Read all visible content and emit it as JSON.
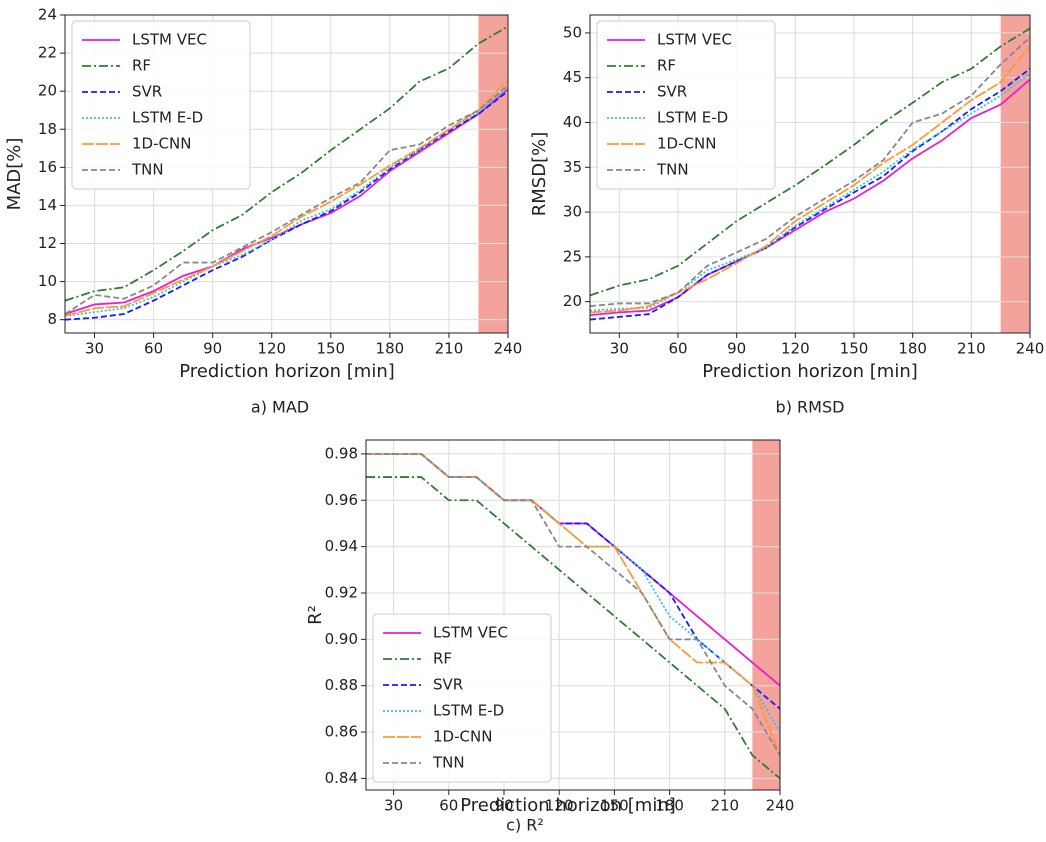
{
  "chart_data": [
    {
      "type": "line",
      "caption": "a) MAD",
      "xlabel": "Prediction horizon [min]",
      "ylabel": "MAD[%]",
      "x": [
        15,
        30,
        45,
        60,
        75,
        90,
        105,
        120,
        135,
        150,
        165,
        180,
        195,
        210,
        225,
        240
      ],
      "xlim": [
        15,
        240
      ],
      "xticks": [
        30,
        60,
        90,
        120,
        150,
        180,
        210,
        240
      ],
      "ylim": [
        7.3,
        24
      ],
      "yticks": [
        8,
        10,
        12,
        14,
        16,
        18,
        20,
        22,
        24
      ],
      "grid": true,
      "legend": "upper left",
      "shaded_span": [
        225,
        240
      ],
      "shade_color": "#f4a29c",
      "series": [
        {
          "name": "LSTM VEC",
          "color": "#e81ed2",
          "style": "solid",
          "values": [
            8.3,
            8.8,
            8.9,
            9.5,
            10.3,
            10.8,
            11.7,
            12.3,
            13.0,
            13.6,
            14.5,
            15.8,
            16.8,
            17.8,
            18.8,
            20.1
          ]
        },
        {
          "name": "RF",
          "color": "#2e7d32",
          "style": "dashdot",
          "values": [
            9.0,
            9.5,
            9.7,
            10.6,
            11.6,
            12.7,
            13.5,
            14.7,
            15.7,
            16.9,
            18.0,
            19.1,
            20.5,
            21.2,
            22.5,
            23.4
          ]
        },
        {
          "name": "SVR",
          "color": "#1a1aff",
          "style": "dashed",
          "values": [
            8.0,
            8.1,
            8.3,
            9.0,
            9.8,
            10.6,
            11.3,
            12.2,
            13.0,
            13.7,
            14.7,
            15.9,
            16.9,
            17.9,
            18.8,
            20.0
          ]
        },
        {
          "name": "LSTM E-D",
          "color": "#35c4d6",
          "style": "dotted",
          "values": [
            8.2,
            8.4,
            8.6,
            9.2,
            10.0,
            10.8,
            11.4,
            12.2,
            13.2,
            13.8,
            14.8,
            16.0,
            16.9,
            18.0,
            18.9,
            20.2
          ]
        },
        {
          "name": "1D-CNN",
          "color": "#ff9933",
          "style": "longdash",
          "values": [
            8.2,
            8.6,
            8.7,
            9.4,
            10.1,
            10.8,
            11.6,
            12.4,
            13.4,
            14.2,
            15.1,
            16.1,
            17.0,
            18.0,
            19.0,
            20.6
          ]
        },
        {
          "name": "TNN",
          "color": "#888888",
          "style": "dashed",
          "values": [
            8.3,
            9.3,
            9.1,
            9.8,
            11.0,
            11.0,
            11.8,
            12.6,
            13.5,
            14.4,
            15.2,
            16.9,
            17.2,
            18.2,
            19.0,
            20.3
          ]
        }
      ]
    },
    {
      "type": "line",
      "caption": "b) RMSD",
      "xlabel": "Prediction horizon [min]",
      "ylabel": "RMSD[%]",
      "x": [
        15,
        30,
        45,
        60,
        75,
        90,
        105,
        120,
        135,
        150,
        165,
        180,
        195,
        210,
        225,
        240
      ],
      "xlim": [
        15,
        240
      ],
      "xticks": [
        30,
        60,
        90,
        120,
        150,
        180,
        210,
        240
      ],
      "ylim": [
        16.5,
        52
      ],
      "yticks": [
        20,
        25,
        30,
        35,
        40,
        45,
        50
      ],
      "grid": true,
      "legend": "upper left",
      "shaded_span": [
        225,
        240
      ],
      "shade_color": "#f4a29c",
      "series": [
        {
          "name": "LSTM VEC",
          "color": "#e81ed2",
          "style": "solid",
          "values": [
            18.5,
            18.8,
            19.0,
            20.5,
            23.0,
            24.5,
            26.0,
            28.0,
            30.0,
            31.5,
            33.5,
            36.0,
            38.0,
            40.5,
            42.0,
            44.8
          ]
        },
        {
          "name": "RF",
          "color": "#2e7d32",
          "style": "dashdot",
          "values": [
            20.7,
            21.8,
            22.5,
            24.0,
            26.5,
            29.0,
            31.0,
            33.0,
            35.2,
            37.5,
            40.0,
            42.2,
            44.5,
            46.0,
            48.5,
            50.5
          ]
        },
        {
          "name": "SVR",
          "color": "#1a1aff",
          "style": "dashed",
          "values": [
            18.0,
            18.3,
            18.6,
            20.5,
            23.0,
            24.5,
            26.0,
            28.3,
            30.3,
            32.2,
            34.0,
            36.8,
            39.0,
            41.5,
            43.5,
            46.0
          ]
        },
        {
          "name": "LSTM E-D",
          "color": "#35c4d6",
          "style": "dotted",
          "values": [
            19.0,
            19.2,
            19.3,
            21.0,
            23.5,
            24.7,
            26.0,
            28.5,
            30.5,
            32.5,
            34.5,
            37.0,
            39.0,
            41.0,
            43.0,
            45.5
          ]
        },
        {
          "name": "1D-CNN",
          "color": "#ff9933",
          "style": "longdash",
          "values": [
            18.8,
            19.0,
            19.5,
            21.0,
            22.5,
            24.3,
            26.2,
            29.0,
            31.0,
            33.0,
            35.5,
            37.5,
            40.0,
            42.5,
            44.5,
            48.5
          ]
        },
        {
          "name": "TNN",
          "color": "#888888",
          "style": "dashed",
          "values": [
            19.5,
            19.8,
            19.8,
            21.0,
            24.0,
            25.5,
            27.0,
            29.5,
            31.5,
            33.5,
            35.8,
            40.0,
            41.0,
            43.0,
            46.5,
            49.5
          ]
        }
      ]
    },
    {
      "type": "line",
      "caption": "c) R²",
      "xlabel": "Prediction horizon [min]",
      "ylabel": "R²",
      "x": [
        15,
        30,
        45,
        60,
        75,
        90,
        105,
        120,
        135,
        150,
        165,
        180,
        195,
        210,
        225,
        240
      ],
      "xlim": [
        15,
        240
      ],
      "xticks": [
        30,
        60,
        90,
        120,
        150,
        180,
        210,
        240
      ],
      "ylim": [
        0.835,
        0.986
      ],
      "yticks": [
        0.84,
        0.86,
        0.88,
        {
          "value": 0.9,
          "label": "0.90"
        },
        0.92,
        0.94,
        0.96,
        0.98
      ],
      "grid": true,
      "legend": "lower left",
      "shaded_span": [
        225,
        240
      ],
      "shade_color": "#f4a29c",
      "series": [
        {
          "name": "LSTM VEC",
          "color": "#e81ed2",
          "style": "solid",
          "values": [
            0.98,
            0.98,
            0.98,
            0.97,
            0.97,
            0.96,
            0.96,
            0.95,
            0.95,
            0.94,
            0.93,
            0.92,
            0.91,
            0.9,
            0.89,
            0.88
          ]
        },
        {
          "name": "RF",
          "color": "#2e7d32",
          "style": "dashdot",
          "values": [
            0.97,
            0.97,
            0.97,
            0.96,
            0.96,
            0.95,
            0.94,
            0.93,
            0.92,
            0.91,
            0.9,
            0.89,
            0.88,
            0.87,
            0.85,
            0.84
          ]
        },
        {
          "name": "SVR",
          "color": "#1a1aff",
          "style": "dashed",
          "values": [
            0.98,
            0.98,
            0.98,
            0.97,
            0.97,
            0.96,
            0.96,
            0.95,
            0.95,
            0.94,
            0.93,
            0.92,
            0.9,
            0.89,
            0.88,
            0.87
          ]
        },
        {
          "name": "LSTM E-D",
          "color": "#35c4d6",
          "style": "dotted",
          "values": [
            0.98,
            0.98,
            0.98,
            0.97,
            0.97,
            0.96,
            0.96,
            0.95,
            0.94,
            0.94,
            0.93,
            0.91,
            0.9,
            0.89,
            0.88,
            0.86
          ]
        },
        {
          "name": "1D-CNN",
          "color": "#ff9933",
          "style": "longdash",
          "values": [
            0.98,
            0.98,
            0.98,
            0.97,
            0.97,
            0.96,
            0.96,
            0.95,
            0.94,
            0.94,
            0.92,
            0.9,
            0.89,
            0.89,
            0.88,
            0.85
          ]
        },
        {
          "name": "TNN",
          "color": "#888888",
          "style": "dashed",
          "values": [
            0.98,
            0.98,
            0.98,
            0.97,
            0.97,
            0.96,
            0.96,
            0.94,
            0.94,
            0.93,
            0.92,
            0.9,
            0.9,
            0.88,
            0.87,
            0.85
          ]
        }
      ]
    }
  ]
}
